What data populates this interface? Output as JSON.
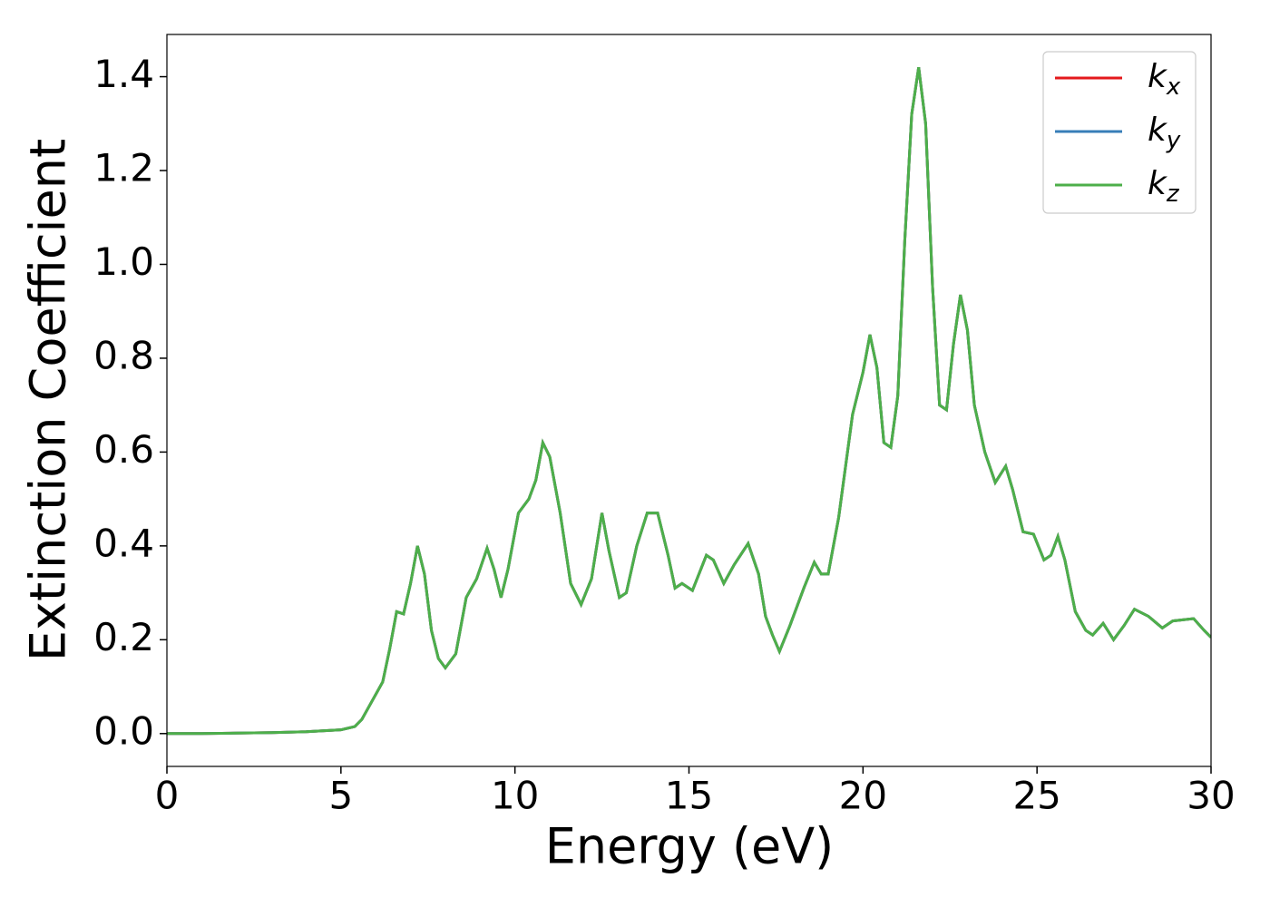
{
  "chart_data": {
    "type": "line",
    "x_label": "Energy (eV)",
    "y_label": "Extinction Coefficient",
    "x": [
      0,
      1,
      2,
      3,
      4,
      5,
      5.4,
      5.6,
      5.9,
      6.2,
      6.4,
      6.6,
      6.8,
      7.0,
      7.2,
      7.4,
      7.6,
      7.8,
      8.0,
      8.3,
      8.6,
      8.9,
      9.2,
      9.4,
      9.6,
      9.8,
      10.1,
      10.4,
      10.6,
      10.8,
      11.0,
      11.3,
      11.6,
      11.9,
      12.2,
      12.5,
      12.7,
      13.0,
      13.2,
      13.5,
      13.8,
      14.1,
      14.4,
      14.6,
      14.8,
      15.1,
      15.5,
      15.7,
      16.0,
      16.3,
      16.7,
      17.0,
      17.2,
      17.4,
      17.6,
      17.9,
      18.3,
      18.6,
      18.8,
      19.0,
      19.3,
      19.7,
      20.0,
      20.2,
      20.4,
      20.6,
      20.8,
      21.0,
      21.2,
      21.4,
      21.6,
      21.8,
      22.0,
      22.2,
      22.4,
      22.6,
      22.8,
      23.0,
      23.2,
      23.5,
      23.8,
      24.1,
      24.3,
      24.6,
      24.9,
      25.2,
      25.4,
      25.6,
      25.8,
      26.1,
      26.4,
      26.6,
      26.9,
      27.2,
      27.5,
      27.8,
      28.2,
      28.6,
      28.9,
      29.5,
      29.8,
      30
    ],
    "series": [
      {
        "name": "kx",
        "color": "#e41a1c",
        "values": [
          0,
          0,
          0.001,
          0.002,
          0.004,
          0.008,
          0.015,
          0.03,
          0.07,
          0.11,
          0.18,
          0.26,
          0.255,
          0.32,
          0.4,
          0.34,
          0.22,
          0.16,
          0.14,
          0.17,
          0.29,
          0.33,
          0.395,
          0.35,
          0.29,
          0.35,
          0.47,
          0.5,
          0.54,
          0.62,
          0.59,
          0.47,
          0.32,
          0.275,
          0.33,
          0.47,
          0.39,
          0.29,
          0.3,
          0.4,
          0.47,
          0.47,
          0.38,
          0.31,
          0.32,
          0.305,
          0.38,
          0.37,
          0.32,
          0.36,
          0.405,
          0.34,
          0.25,
          0.21,
          0.175,
          0.23,
          0.31,
          0.365,
          0.34,
          0.34,
          0.46,
          0.68,
          0.77,
          0.85,
          0.78,
          0.62,
          0.61,
          0.72,
          1.05,
          1.32,
          1.42,
          1.3,
          0.95,
          0.7,
          0.69,
          0.83,
          0.935,
          0.86,
          0.7,
          0.6,
          0.535,
          0.57,
          0.52,
          0.43,
          0.425,
          0.37,
          0.38,
          0.42,
          0.37,
          0.26,
          0.22,
          0.21,
          0.235,
          0.2,
          0.23,
          0.265,
          0.25,
          0.225,
          0.24,
          0.245,
          0.22,
          0.205
        ]
      },
      {
        "name": "ky",
        "color": "#377eb8",
        "values": [
          0,
          0,
          0.001,
          0.002,
          0.004,
          0.008,
          0.015,
          0.03,
          0.07,
          0.11,
          0.18,
          0.26,
          0.255,
          0.32,
          0.4,
          0.34,
          0.22,
          0.16,
          0.14,
          0.17,
          0.29,
          0.33,
          0.395,
          0.35,
          0.29,
          0.35,
          0.47,
          0.5,
          0.54,
          0.62,
          0.59,
          0.47,
          0.32,
          0.275,
          0.33,
          0.47,
          0.39,
          0.29,
          0.3,
          0.4,
          0.47,
          0.47,
          0.38,
          0.31,
          0.32,
          0.305,
          0.38,
          0.37,
          0.32,
          0.36,
          0.405,
          0.34,
          0.25,
          0.21,
          0.175,
          0.23,
          0.31,
          0.365,
          0.34,
          0.34,
          0.46,
          0.68,
          0.77,
          0.85,
          0.78,
          0.62,
          0.61,
          0.72,
          1.05,
          1.32,
          1.42,
          1.3,
          0.95,
          0.7,
          0.69,
          0.83,
          0.935,
          0.86,
          0.7,
          0.6,
          0.535,
          0.57,
          0.52,
          0.43,
          0.425,
          0.37,
          0.38,
          0.42,
          0.37,
          0.26,
          0.22,
          0.21,
          0.235,
          0.2,
          0.23,
          0.265,
          0.25,
          0.225,
          0.24,
          0.245,
          0.22,
          0.205
        ]
      },
      {
        "name": "kz",
        "color": "#4daf4a",
        "values": [
          0,
          0,
          0.001,
          0.002,
          0.004,
          0.008,
          0.015,
          0.03,
          0.07,
          0.11,
          0.18,
          0.26,
          0.255,
          0.32,
          0.4,
          0.34,
          0.22,
          0.16,
          0.14,
          0.17,
          0.29,
          0.33,
          0.395,
          0.35,
          0.29,
          0.35,
          0.47,
          0.5,
          0.54,
          0.62,
          0.59,
          0.47,
          0.32,
          0.275,
          0.33,
          0.47,
          0.39,
          0.29,
          0.3,
          0.4,
          0.47,
          0.47,
          0.38,
          0.31,
          0.32,
          0.305,
          0.38,
          0.37,
          0.32,
          0.36,
          0.405,
          0.34,
          0.25,
          0.21,
          0.175,
          0.23,
          0.31,
          0.365,
          0.34,
          0.34,
          0.46,
          0.68,
          0.77,
          0.85,
          0.78,
          0.62,
          0.61,
          0.72,
          1.05,
          1.32,
          1.42,
          1.3,
          0.95,
          0.7,
          0.69,
          0.83,
          0.935,
          0.86,
          0.7,
          0.6,
          0.535,
          0.57,
          0.52,
          0.43,
          0.425,
          0.37,
          0.38,
          0.42,
          0.37,
          0.26,
          0.22,
          0.21,
          0.235,
          0.2,
          0.23,
          0.265,
          0.25,
          0.225,
          0.24,
          0.245,
          0.22,
          0.205
        ]
      }
    ],
    "xlim": [
      0,
      30
    ],
    "xticks": [
      0,
      5,
      10,
      15,
      20,
      25,
      30
    ],
    "ylim": [
      -0.07,
      1.49
    ],
    "yticks": [
      {
        "value": 0,
        "label": "0.0"
      },
      0.2,
      0.4,
      0.6,
      0.8,
      {
        "value": 1,
        "label": "1.0"
      },
      1.2,
      1.4
    ],
    "legend": "upper right",
    "grid": false
  }
}
